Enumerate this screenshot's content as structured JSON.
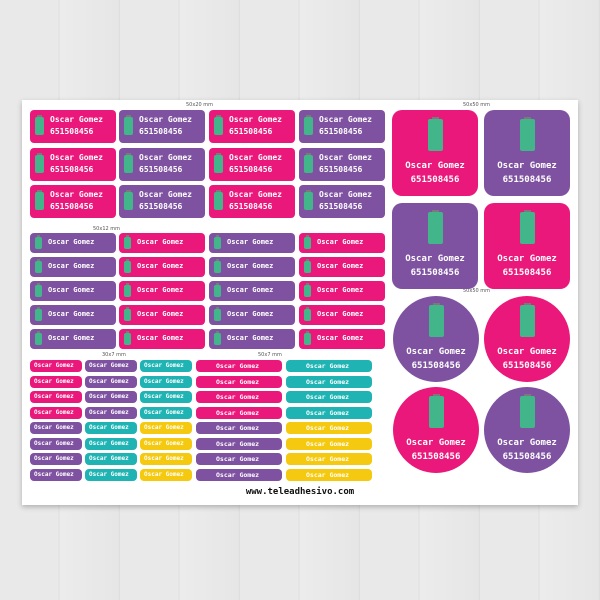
{
  "sheet": {
    "captions": {
      "c50x20": "50x20 mm",
      "c50x12": "50x12 mm",
      "c30x7": "30x7 mm",
      "c50x7": "50x7 mm",
      "c50x50_square": "50x50 mm",
      "c50x50_round": "50x50 mm"
    },
    "label_name": "Oscar Gomez",
    "label_phone": "651508456",
    "website": "www.teleadhesivo.com"
  },
  "colors": {
    "pink": "#e9187a",
    "purple": "#7e52a0",
    "teal": "#1fb3b3",
    "yellow": "#f4c90f",
    "robot": "#43b58a"
  }
}
